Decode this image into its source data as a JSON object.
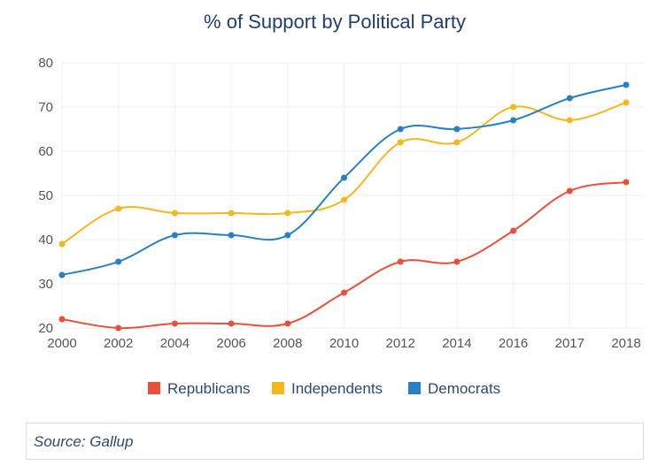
{
  "chart_data": {
    "type": "line",
    "title": "% of Support by Political Party",
    "categories": [
      "2000",
      "2002",
      "2004",
      "2006",
      "2008",
      "2010",
      "2012",
      "2014",
      "2016",
      "2017",
      "2018"
    ],
    "ylim": [
      20,
      80
    ],
    "yticks": [
      20,
      30,
      40,
      50,
      60,
      70,
      80
    ],
    "grid": true,
    "legend_position": "bottom",
    "series": [
      {
        "name": "Republicans",
        "color": "#e8503a",
        "values": [
          22,
          20,
          21,
          21,
          21,
          28,
          35,
          35,
          42,
          51,
          53
        ]
      },
      {
        "name": "Independents",
        "color": "#f5b71c",
        "values": [
          39,
          47,
          46,
          46,
          46,
          49,
          62,
          62,
          70,
          67,
          71
        ]
      },
      {
        "name": "Democrats",
        "color": "#2880c4",
        "values": [
          32,
          35,
          41,
          41,
          41,
          54,
          65,
          65,
          67,
          72,
          75
        ]
      }
    ]
  },
  "source": "Source: Gallup"
}
